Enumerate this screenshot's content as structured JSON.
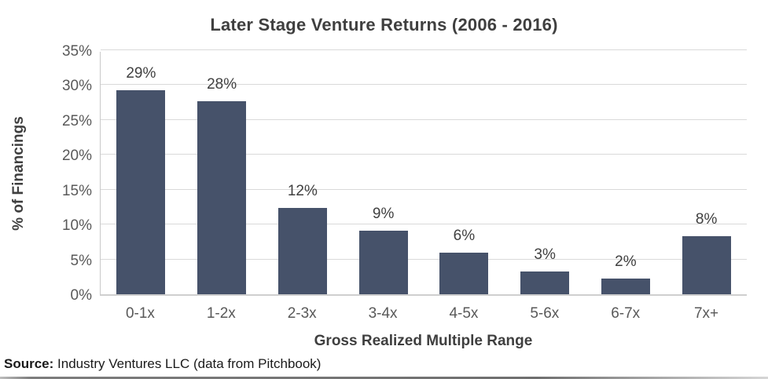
{
  "title": "Later Stage Venture Returns (2006 - 2016)",
  "source": {
    "label": "Source:",
    "text": " Industry Ventures LLC (data from Pitchbook)"
  },
  "chart_data": {
    "type": "bar",
    "title": "Later Stage Venture Returns (2006 - 2016)",
    "categories": [
      "0-1x",
      "1-2x",
      "2-3x",
      "3-4x",
      "4-5x",
      "5-6x",
      "6-7x",
      "7x+"
    ],
    "values": [
      29.3,
      27.7,
      12.4,
      9.1,
      6.0,
      3.3,
      2.3,
      8.3
    ],
    "data_labels": [
      "29%",
      "28%",
      "12%",
      "9%",
      "6%",
      "3%",
      "2%",
      "8%"
    ],
    "xlabel": "Gross Realized Multiple Range",
    "ylabel": "% of Financings",
    "ylim": [
      0,
      35
    ],
    "ytick_step": 5,
    "ytick_labels": [
      "0%",
      "5%",
      "10%",
      "15%",
      "20%",
      "25%",
      "30%",
      "35%"
    ],
    "grid": true,
    "legend": "none",
    "bar_color": "#46526a",
    "gridline_color": "#d9d9d9",
    "axis_line_color": "#c9c9c9",
    "title_color": "#3f3f3f",
    "tick_label_color": "#595959",
    "data_label_color": "#404040"
  }
}
